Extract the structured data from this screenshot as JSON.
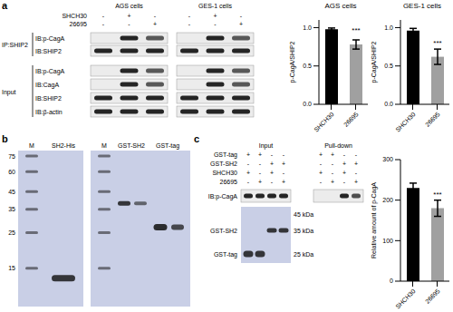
{
  "chart_data": [
    {
      "type": "bar",
      "title": "AGS cells",
      "y_label": "p-CagA/SHIP2",
      "categories": [
        "SHCH30",
        "26695"
      ],
      "values": [
        0.98,
        0.78
      ],
      "errors": [
        0.015,
        0.06
      ],
      "colors": [
        "#000000",
        "#a0a0a0"
      ],
      "ylim": [
        0,
        1.1
      ],
      "yticks": [
        {
          "value": 0,
          "label": "0.0"
        },
        0.5,
        {
          "value": 1,
          "label": "1.0"
        }
      ],
      "grid": false,
      "annotation": {
        "category": "26695",
        "text": "***"
      }
    },
    {
      "type": "bar",
      "title": "GES-1 cells",
      "y_label": "p-CagA/SHIP2",
      "categories": [
        "SHCH30",
        "26695"
      ],
      "values": [
        0.96,
        0.62
      ],
      "errors": [
        0.03,
        0.1
      ],
      "colors": [
        "#000000",
        "#a0a0a0"
      ],
      "ylim": [
        0,
        1.1
      ],
      "yticks": [
        {
          "value": 0,
          "label": "0.0"
        },
        0.5,
        {
          "value": 1,
          "label": "1.0"
        }
      ],
      "grid": false,
      "annotation": {
        "category": "26695",
        "text": "***"
      }
    },
    {
      "type": "bar",
      "y_label": "Relative amount of p-CagA",
      "categories": [
        "SHCH30",
        "26695"
      ],
      "values": [
        230,
        180
      ],
      "errors": [
        12,
        20
      ],
      "colors": [
        "#000000",
        "#a0a0a0"
      ],
      "ylim": [
        0,
        300
      ],
      "yticks": [
        0,
        100,
        200,
        300
      ],
      "grid": false,
      "annotation": {
        "category": "26695",
        "text": "***"
      }
    }
  ],
  "panels": {
    "a": {
      "label": "a",
      "blots": [
        {
          "title": "AGS cells",
          "treatments": [
            {
              "name": "SHCH30",
              "marks": [
                "-",
                "+",
                "-"
              ]
            },
            {
              "name": "26695",
              "marks": [
                "-",
                "-",
                "+"
              ]
            }
          ]
        },
        {
          "title": "GES-1 cells",
          "treatments": [
            {
              "name": "SHCH30",
              "marks": [
                "-",
                "+",
                "-"
              ]
            },
            {
              "name": "26695",
              "marks": [
                "-",
                "-",
                "+"
              ]
            }
          ]
        }
      ],
      "groups": [
        {
          "name": "IP:SHIP2",
          "rows": [
            "IB:p-CagA",
            "IB:SHIP2"
          ]
        },
        {
          "name": "Input",
          "rows": [
            "IB:p-CagA",
            "IB:CagA",
            "IB:SHIP2",
            "IB:β-actin"
          ]
        }
      ]
    },
    "b": {
      "label": "b",
      "gels": [
        {
          "lanes": [
            "M",
            "SH2-His"
          ],
          "markers": [
            75,
            60,
            45,
            35,
            25,
            15
          ]
        },
        {
          "lanes": [
            "M",
            "GST-SH2",
            "GST-tag"
          ]
        }
      ]
    },
    "c": {
      "label": "c",
      "sections": [
        "Input",
        "Pull-down"
      ],
      "treatments": [
        {
          "name": "GST-tag",
          "marks": [
            "+",
            "+",
            "-",
            "-"
          ]
        },
        {
          "name": "GST-SH2",
          "marks": [
            "-",
            "-",
            "+",
            "+"
          ]
        },
        {
          "name": "SHCH30",
          "marks": [
            "+",
            "-",
            "+",
            "-"
          ]
        },
        {
          "name": "26695",
          "marks": [
            "-",
            "+",
            "-",
            "+"
          ]
        }
      ],
      "blot": "IB:p-CagA",
      "stain_rows": [
        "GST-SH2",
        "GST-tag"
      ],
      "size_labels": [
        "45 kDa",
        "35 kDa",
        "25 kDa"
      ]
    }
  }
}
